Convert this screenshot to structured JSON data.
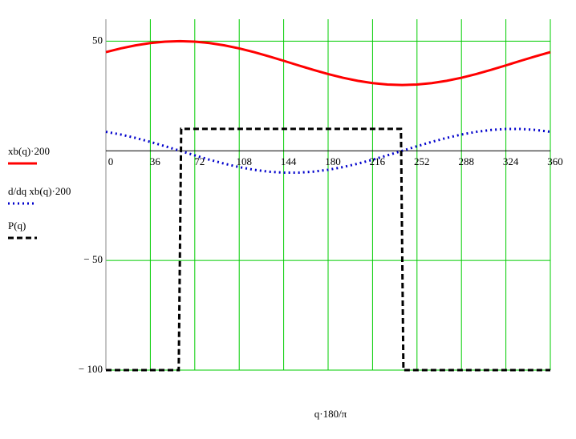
{
  "chart_data": {
    "type": "line",
    "x_label": "q·180/π",
    "x": [
      0,
      12,
      24,
      36,
      48,
      60,
      72,
      84,
      96,
      108,
      120,
      132,
      144,
      156,
      168,
      180,
      192,
      204,
      216,
      228,
      240,
      252,
      264,
      276,
      288,
      300,
      312,
      324,
      336,
      348,
      360
    ],
    "series": [
      {
        "name": "xb(q)·200",
        "color": "#ff0000",
        "style": "solid",
        "values": [
          45,
          46.69,
          48.09,
          49.14,
          49.78,
          50,
          49.78,
          49.14,
          48.09,
          46.69,
          45,
          43.09,
          41.05,
          38.95,
          36.91,
          35,
          33.31,
          31.91,
          30.86,
          30.22,
          30,
          30.22,
          30.86,
          31.91,
          33.31,
          35,
          36.91,
          38.95,
          41.05,
          43.09,
          45
        ]
      },
      {
        "name": "d/dq xb(q)·200",
        "color": "#0000cc",
        "style": "dotted",
        "values": [
          8.66,
          7.43,
          5.88,
          4.07,
          2.08,
          0,
          -2.08,
          -4.07,
          -5.88,
          -7.43,
          -8.66,
          -9.51,
          -9.95,
          -9.95,
          -9.51,
          -8.66,
          -7.43,
          -5.88,
          -4.07,
          -2.08,
          0,
          2.08,
          4.07,
          5.88,
          7.43,
          8.66,
          9.51,
          9.95,
          9.95,
          9.51,
          8.66
        ]
      },
      {
        "name": "P(q)",
        "color": "#000000",
        "style": "dashed",
        "x": [
          0,
          59,
          61,
          239,
          241,
          360
        ],
        "values": [
          -100,
          -100,
          10,
          10,
          -100,
          -100
        ]
      }
    ],
    "xlim": [
      0,
      360
    ],
    "xticks": [
      0,
      36,
      72,
      108,
      144,
      180,
      216,
      252,
      288,
      324,
      360
    ],
    "ylim": [
      -100,
      60
    ],
    "yticks": [
      {
        "value": -100,
        "label": "− 100"
      },
      {
        "value": -50,
        "label": "− 50"
      },
      50
    ],
    "grid": true,
    "grid_color": "#00cc00"
  }
}
